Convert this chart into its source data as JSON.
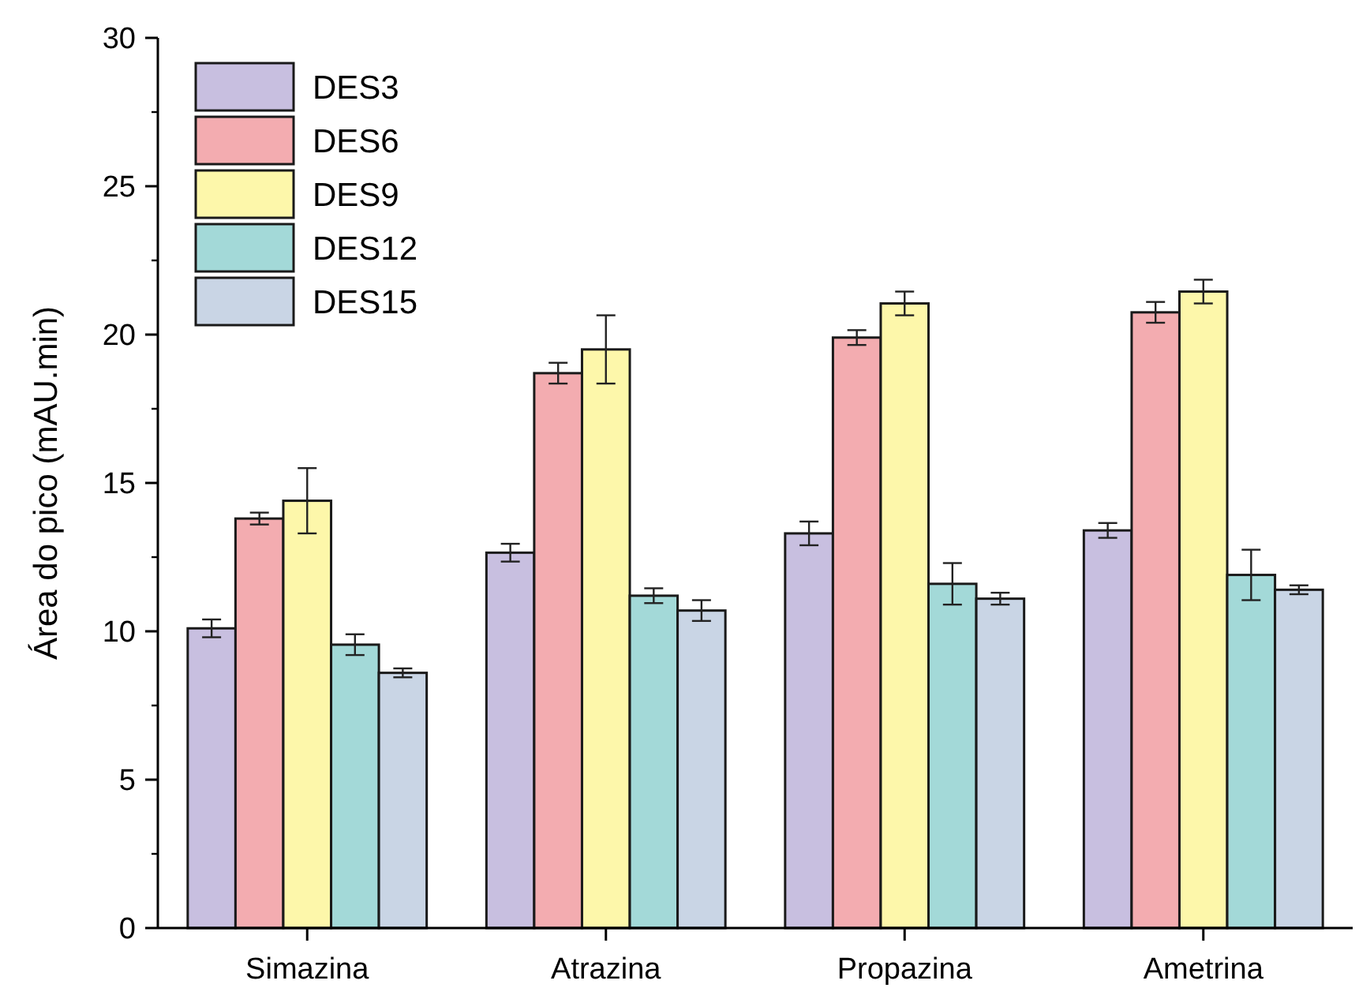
{
  "chart_data": {
    "type": "bar",
    "ylabel": "Área do pico (mAU.min)",
    "categories": [
      "Simazina",
      "Atrazina",
      "Propazina",
      "Ametrina"
    ],
    "series": [
      {
        "name": "DES3",
        "color": "#c8bfe0",
        "values": [
          10.1,
          12.65,
          13.3,
          13.4
        ],
        "errors": [
          0.3,
          0.3,
          0.4,
          0.25
        ]
      },
      {
        "name": "DES6",
        "color": "#f3acb0",
        "values": [
          13.8,
          18.7,
          19.9,
          20.75
        ],
        "errors": [
          0.2,
          0.35,
          0.25,
          0.35
        ]
      },
      {
        "name": "DES9",
        "color": "#fdf7aa",
        "values": [
          14.4,
          19.5,
          21.05,
          21.45
        ],
        "errors": [
          1.1,
          1.15,
          0.4,
          0.4
        ]
      },
      {
        "name": "DES12",
        "color": "#a3d9d8",
        "values": [
          9.55,
          11.2,
          11.6,
          11.9
        ],
        "errors": [
          0.35,
          0.25,
          0.7,
          0.85
        ]
      },
      {
        "name": "DES15",
        "color": "#c9d5e5",
        "values": [
          8.6,
          10.7,
          11.1,
          11.4
        ],
        "errors": [
          0.15,
          0.35,
          0.2,
          0.15
        ]
      }
    ],
    "ylim": [
      0,
      30
    ],
    "yticks": [
      0,
      5,
      10,
      15,
      20,
      25,
      30
    ],
    "legend": "top left"
  }
}
